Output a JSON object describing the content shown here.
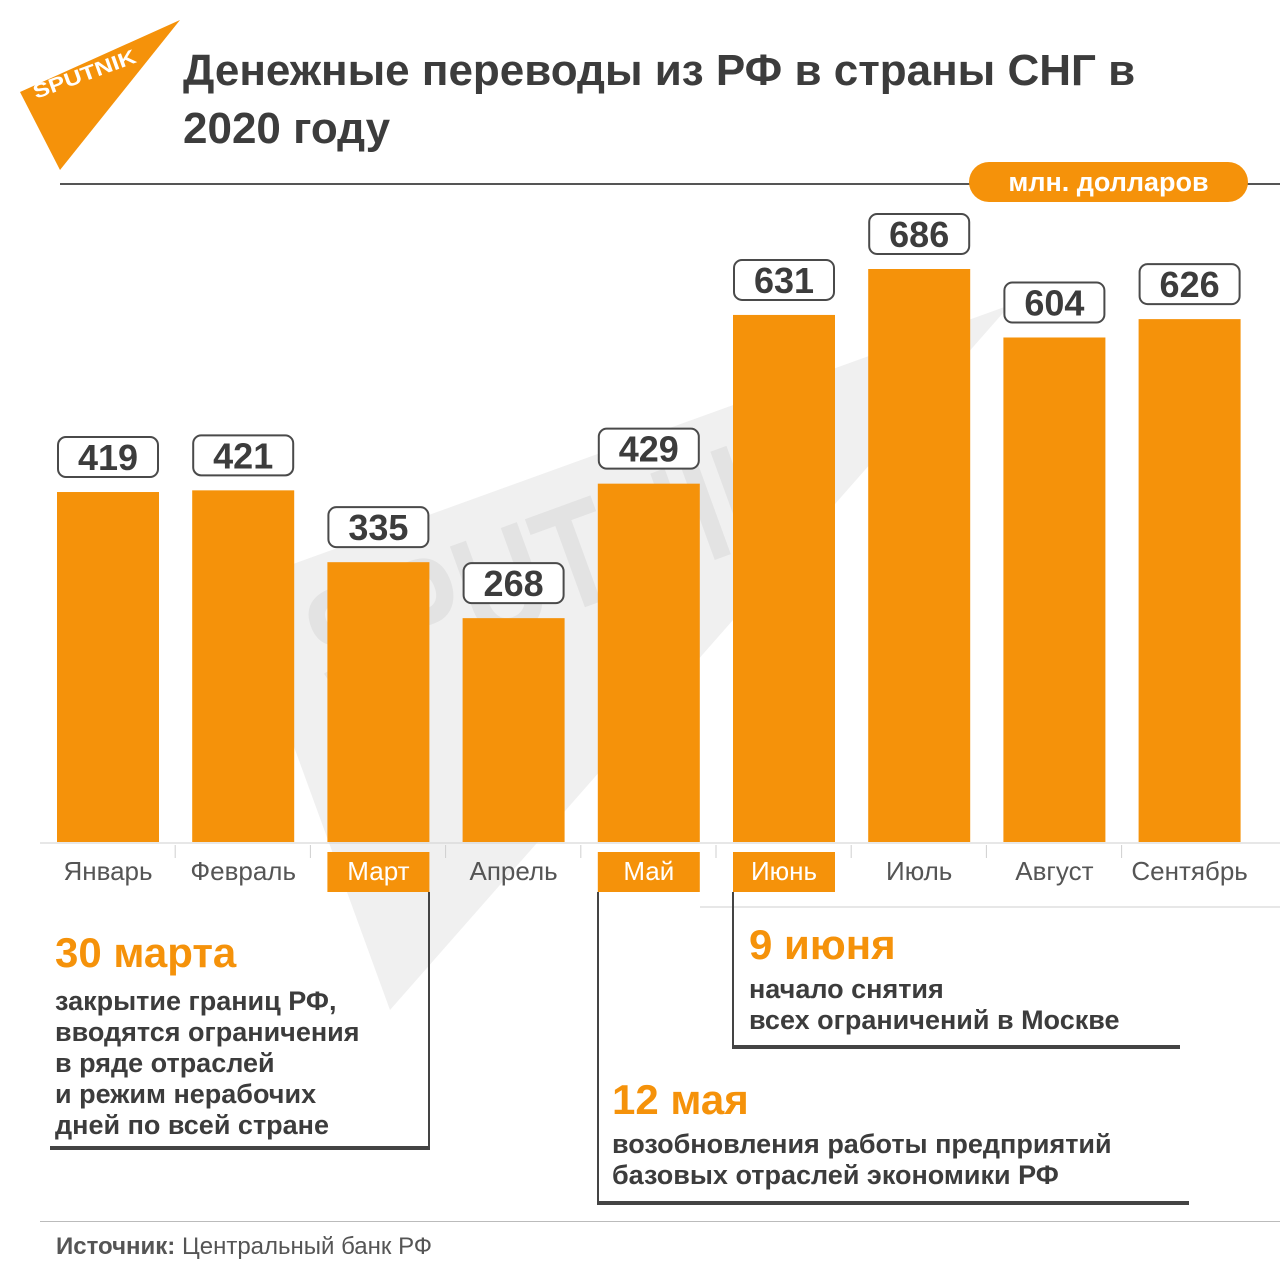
{
  "brand": {
    "logo_text": "SPUTNIK",
    "color": "#f5920a"
  },
  "title": "Денежные переводы из РФ в страны СНГ в 2020 году",
  "units": "млн. долларов",
  "chart_data": {
    "type": "bar",
    "categories": [
      "Январь",
      "Февраль",
      "Март",
      "Апрель",
      "Май",
      "Июнь",
      "Июль",
      "Август",
      "Сентябрь"
    ],
    "values": [
      419,
      421,
      335,
      268,
      429,
      631,
      686,
      604,
      626
    ],
    "highlighted_categories": [
      "Март",
      "Май",
      "Июнь"
    ],
    "bar_color": "#f5920a",
    "ylim": [
      0,
      700
    ],
    "title": "Денежные переводы из РФ в страны СНГ в 2020 году",
    "ylabel": "млн. долларов",
    "xlabel": ""
  },
  "events": [
    {
      "date": "30 марта",
      "description": [
        "закрытие границ РФ,",
        "вводятся ограничения",
        "в ряде отраслей",
        "и режим нерабочих",
        "дней по всей стране"
      ]
    },
    {
      "date": "9 июня",
      "description": [
        "начало снятия",
        "всех ограничений в Москве"
      ]
    },
    {
      "date": "12 мая",
      "description": [
        "возобновления работы предприятий",
        "базовых отраслей экономики РФ"
      ]
    }
  ],
  "source": {
    "label": "Источник:",
    "text": "Центральный банк РФ"
  }
}
